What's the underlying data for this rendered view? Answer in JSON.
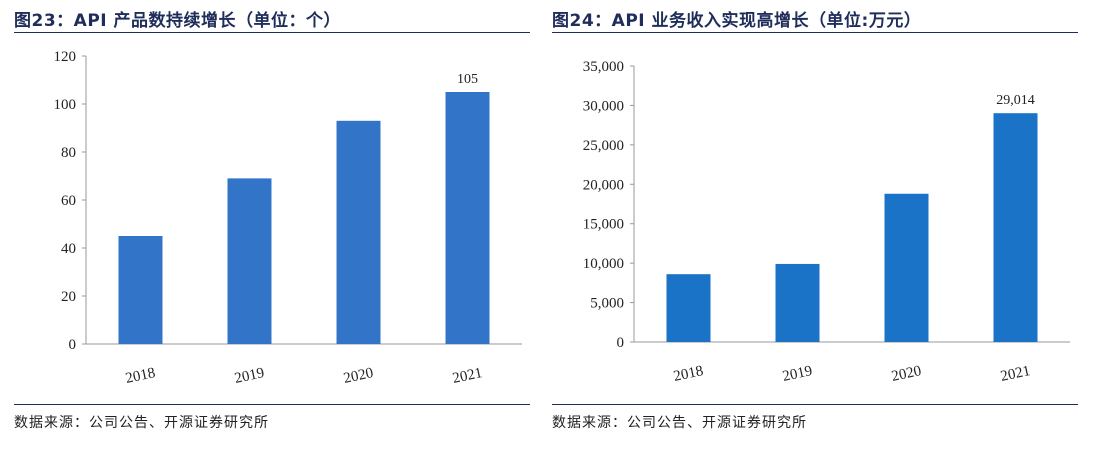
{
  "figures": [
    {
      "title": "图23：API 产品数持续增长（单位：个）",
      "source": "数据来源：公司公告、开源证券研究所"
    },
    {
      "title": "图24：API 业务收入实现高增长（单位:万元）",
      "source": "数据来源：公司公告、开源证券研究所"
    }
  ],
  "chart_data": [
    {
      "type": "bar",
      "categories": [
        "2018",
        "2019",
        "2020",
        "2021"
      ],
      "values": [
        45,
        69,
        93,
        105
      ],
      "ylim": [
        0,
        120
      ],
      "yticks": [
        0,
        20,
        40,
        60,
        80,
        100,
        120
      ],
      "ytick_labels": [
        "0",
        "20",
        "40",
        "60",
        "80",
        "100",
        "120"
      ],
      "data_labels": {
        "3": "105"
      },
      "bar_color": "#3174c8",
      "grid": false,
      "legend": "none"
    },
    {
      "type": "bar",
      "categories": [
        "2018",
        "2019",
        "2020",
        "2021"
      ],
      "values": [
        8600,
        9900,
        18800,
        29014
      ],
      "ylim": [
        0,
        35000
      ],
      "yticks": [
        0,
        5000,
        10000,
        15000,
        20000,
        25000,
        30000,
        35000
      ],
      "ytick_labels": [
        "0",
        "5,000",
        "10,000",
        "15,000",
        "20,000",
        "25,000",
        "30,000",
        "35,000"
      ],
      "data_labels": {
        "3": "29,014"
      },
      "bar_color": "#1a73c7",
      "grid": false,
      "legend": "none"
    }
  ]
}
